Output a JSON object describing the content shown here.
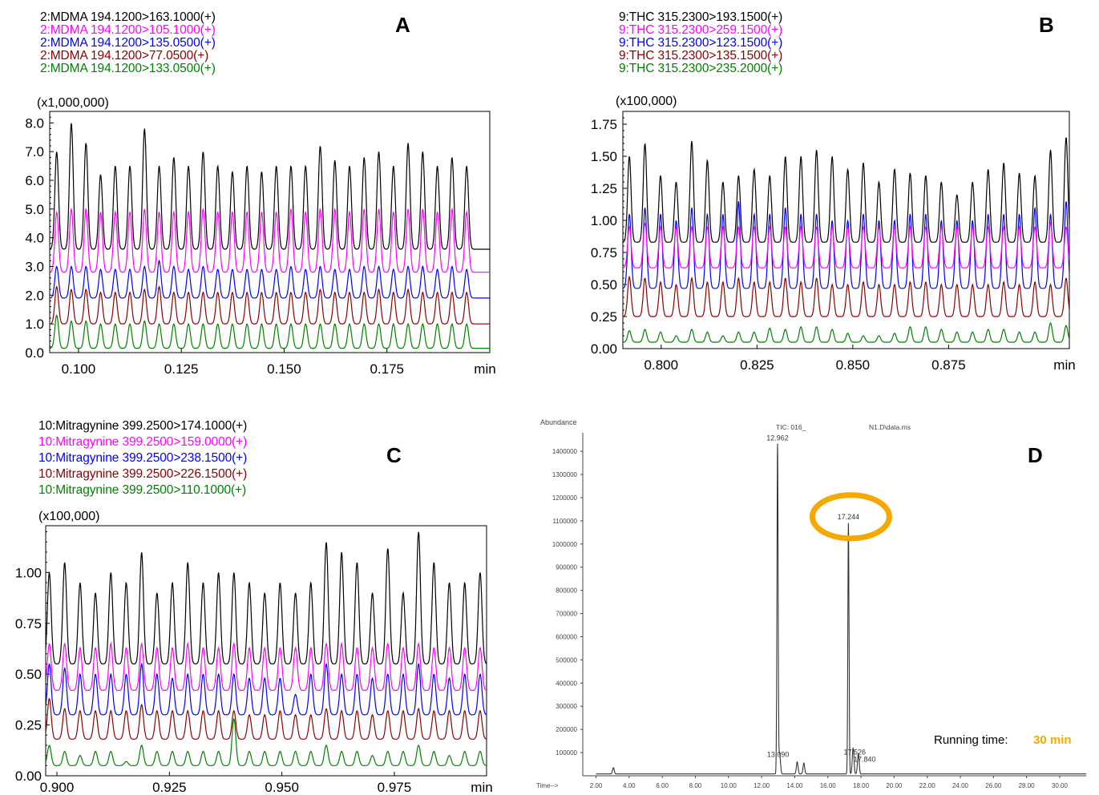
{
  "chart_data": [
    {
      "panel": "A",
      "type": "line",
      "scale_label": "(x1,000,000)",
      "xlabel": "min",
      "xticks": [
        "0.100",
        "0.125",
        "0.150",
        "0.175"
      ],
      "yticks": [
        "0.0",
        "1.0",
        "2.0",
        "3.0",
        "4.0",
        "5.0",
        "6.0",
        "7.0",
        "8.0"
      ],
      "xlim": [
        0.093,
        0.2
      ],
      "ylim": [
        0,
        8.4
      ],
      "peak_x_start": 0.0947,
      "peak_interval": 0.00356,
      "peak_width": 0.00045,
      "series": [
        {
          "name": "2:MDMA 194.1200>163.1000(+)",
          "color": "#000000",
          "baseline": 3.6,
          "peaks": [
            7.0,
            8.0,
            7.3,
            6.2,
            6.5,
            6.5,
            7.8,
            6.5,
            6.8,
            6.5,
            7.0,
            6.5,
            6.3,
            6.5,
            6.3,
            6.5,
            6.5,
            6.5,
            7.2,
            6.7,
            6.5,
            6.8,
            7.0,
            6.5,
            7.3,
            7.0,
            6.5,
            6.8,
            6.5
          ]
        },
        {
          "name": "2:MDMA 194.1200>105.1000(+)",
          "color": "#ff00ff",
          "baseline": 2.8,
          "peaks": [
            4.9,
            5.0,
            5.0,
            4.9,
            4.9,
            4.9,
            5.0,
            4.9,
            4.9,
            4.9,
            5.0,
            4.9,
            4.9,
            4.9,
            4.9,
            4.9,
            5.0,
            4.9,
            5.0,
            5.0,
            4.9,
            5.0,
            5.0,
            4.9,
            5.0,
            5.0,
            4.9,
            5.0,
            4.9
          ]
        },
        {
          "name": "2:MDMA 194.1200>135.0500(+)",
          "color": "#0000ff",
          "baseline": 1.9,
          "peaks": [
            3.0,
            3.0,
            3.0,
            2.9,
            2.9,
            2.9,
            3.0,
            3.2,
            3.0,
            2.9,
            3.0,
            2.9,
            2.9,
            2.9,
            2.9,
            2.9,
            3.0,
            2.9,
            3.0,
            2.9,
            2.9,
            3.0,
            3.0,
            2.9,
            3.0,
            3.0,
            2.9,
            3.0,
            2.9
          ]
        },
        {
          "name": "2:MDMA 194.1200>77.0500(+)",
          "color": "#8b0000",
          "baseline": 1.0,
          "peaks": [
            2.3,
            2.2,
            2.2,
            2.1,
            2.1,
            2.1,
            2.2,
            2.3,
            2.1,
            2.1,
            2.1,
            2.1,
            2.1,
            2.1,
            2.1,
            2.1,
            2.1,
            2.1,
            2.2,
            2.1,
            2.1,
            2.1,
            2.2,
            2.1,
            2.2,
            2.1,
            2.1,
            2.1,
            2.1
          ]
        },
        {
          "name": "2:MDMA 194.1200>133.0500(+)",
          "color": "#008000",
          "baseline": 0.15,
          "peaks": [
            1.3,
            1.1,
            1.1,
            1.0,
            1.0,
            1.0,
            1.1,
            1.0,
            1.0,
            1.0,
            1.0,
            1.0,
            1.0,
            1.0,
            1.0,
            1.0,
            1.0,
            1.0,
            1.0,
            1.0,
            1.0,
            1.0,
            1.0,
            1.0,
            1.0,
            1.0,
            1.0,
            1.0,
            1.0
          ]
        }
      ]
    },
    {
      "panel": "B",
      "type": "line",
      "scale_label": "(x100,000)",
      "xlabel": "min",
      "xticks": [
        "0.800",
        "0.825",
        "0.850",
        "0.875"
      ],
      "yticks": [
        "0.00",
        "0.25",
        "0.50",
        "0.75",
        "1.00",
        "1.25",
        "1.50",
        "1.75"
      ],
      "xlim": [
        0.79,
        0.9065
      ],
      "ylim": [
        0,
        1.85
      ],
      "peak_x_start": 0.7917,
      "peak_interval": 0.00407,
      "peak_width": 0.00045,
      "series": [
        {
          "name": "9:THC 315.2300>193.1500(+)",
          "color": "#000000",
          "baseline": 0.83,
          "peaks": [
            1.5,
            1.6,
            1.35,
            1.3,
            1.62,
            1.47,
            1.3,
            1.35,
            1.4,
            1.35,
            1.5,
            1.5,
            1.55,
            1.5,
            1.4,
            1.45,
            1.3,
            1.4,
            1.37,
            1.35,
            1.3,
            1.2,
            1.3,
            1.4,
            1.45,
            1.37,
            1.35,
            1.55,
            1.65
          ]
        },
        {
          "name": "9:THC 315.2300>259.1500(+)",
          "color": "#ff00ff",
          "baseline": 0.63,
          "peaks": [
            0.95,
            0.98,
            0.95,
            0.95,
            0.95,
            0.95,
            0.95,
            0.95,
            0.95,
            0.95,
            0.95,
            0.95,
            0.95,
            0.95,
            0.95,
            0.95,
            0.95,
            0.95,
            0.95,
            0.95,
            0.95,
            0.95,
            0.95,
            0.95,
            0.95,
            0.95,
            0.95,
            0.98,
            0.95
          ]
        },
        {
          "name": "9:THC 315.2300>123.1500(+)",
          "color": "#0000ff",
          "baseline": 0.47,
          "peaks": [
            1.05,
            1.1,
            1.05,
            1.0,
            1.1,
            1.05,
            1.05,
            1.15,
            1.05,
            1.05,
            1.1,
            1.05,
            1.05,
            1.0,
            1.0,
            1.05,
            1.0,
            1.0,
            1.05,
            1.05,
            1.0,
            1.0,
            1.0,
            1.05,
            1.05,
            1.05,
            1.1,
            1.05,
            1.15
          ]
        },
        {
          "name": "9:THC 315.2300>135.1500(+)",
          "color": "#8b0000",
          "baseline": 0.25,
          "peaks": [
            0.56,
            0.55,
            0.52,
            0.5,
            0.55,
            0.52,
            0.52,
            0.55,
            0.52,
            0.52,
            0.55,
            0.52,
            0.55,
            0.5,
            0.5,
            0.52,
            0.5,
            0.5,
            0.52,
            0.52,
            0.5,
            0.5,
            0.5,
            0.5,
            0.52,
            0.5,
            0.52,
            0.5,
            0.55
          ]
        },
        {
          "name": "9:THC 315.2300>235.2000(+)",
          "color": "#008000",
          "baseline": 0.05,
          "peaks": [
            0.14,
            0.15,
            0.13,
            0.1,
            0.15,
            0.13,
            0.1,
            0.13,
            0.13,
            0.16,
            0.15,
            0.17,
            0.17,
            0.15,
            0.12,
            0.1,
            0.1,
            0.12,
            0.17,
            0.17,
            0.15,
            0.13,
            0.13,
            0.15,
            0.15,
            0.13,
            0.13,
            0.2,
            0.18
          ]
        }
      ]
    },
    {
      "panel": "C",
      "type": "line",
      "scale_label": "(x100,000)",
      "xlabel": "min",
      "xticks": [
        "0.900",
        "0.925",
        "0.950",
        "0.975"
      ],
      "yticks": [
        "0.00",
        "0.25",
        "0.50",
        "0.75",
        "1.00"
      ],
      "xlim": [
        0.8975,
        0.9955
      ],
      "ylim": [
        0,
        1.23
      ],
      "peak_x_start": 0.8983,
      "peak_interval": 0.00342,
      "peak_width": 0.00042,
      "series": [
        {
          "name": "10:Mitragynine 399.2500>174.1000(+)",
          "color": "#000000",
          "baseline": 0.55,
          "peaks": [
            1.0,
            1.05,
            0.95,
            0.9,
            1.0,
            0.95,
            1.1,
            0.9,
            0.95,
            1.05,
            0.95,
            1.0,
            1.0,
            0.95,
            0.9,
            0.95,
            0.9,
            0.95,
            1.15,
            1.1,
            1.05,
            0.9,
            1.12,
            0.9,
            1.2,
            1.05,
            0.95,
            0.95,
            1.0,
            1.2
          ]
        },
        {
          "name": "10:Mitragynine 399.2500>159.0000(+)",
          "color": "#ff00ff",
          "baseline": 0.42,
          "peaks": [
            0.65,
            0.65,
            0.63,
            0.63,
            0.65,
            0.63,
            0.65,
            0.63,
            0.63,
            0.65,
            0.63,
            0.63,
            0.65,
            0.63,
            0.63,
            0.63,
            0.63,
            0.63,
            0.65,
            0.65,
            0.63,
            0.63,
            0.65,
            0.63,
            0.65,
            0.63,
            0.63,
            0.63,
            0.63,
            0.65
          ]
        },
        {
          "name": "10:Mitragynine 399.2500>238.1500(+)",
          "color": "#0000ff",
          "baseline": 0.3,
          "peaks": [
            0.55,
            0.53,
            0.5,
            0.5,
            0.5,
            0.5,
            0.55,
            0.5,
            0.48,
            0.5,
            0.5,
            0.5,
            0.5,
            0.48,
            0.48,
            0.48,
            0.4,
            0.5,
            0.55,
            0.5,
            0.5,
            0.48,
            0.5,
            0.5,
            0.55,
            0.5,
            0.48,
            0.5,
            0.5,
            0.5
          ]
        },
        {
          "name": "10:Mitragynine 399.2500>226.1500(+)",
          "color": "#8b0000",
          "baseline": 0.18,
          "peaks": [
            0.38,
            0.33,
            0.32,
            0.32,
            0.32,
            0.32,
            0.35,
            0.32,
            0.32,
            0.32,
            0.32,
            0.32,
            0.32,
            0.3,
            0.3,
            0.32,
            0.3,
            0.3,
            0.33,
            0.32,
            0.32,
            0.3,
            0.32,
            0.32,
            0.33,
            0.32,
            0.32,
            0.32,
            0.32,
            0.35
          ]
        },
        {
          "name": "10:Mitragynine 399.2500>110.1000(+)",
          "color": "#008000",
          "baseline": 0.05,
          "peaks": [
            0.15,
            0.12,
            0.1,
            0.12,
            0.12,
            0.07,
            0.15,
            0.12,
            0.12,
            0.12,
            0.12,
            0.12,
            0.28,
            0.12,
            0.12,
            0.12,
            0.12,
            0.12,
            0.15,
            0.12,
            0.12,
            0.1,
            0.12,
            0.12,
            0.15,
            0.12,
            0.1,
            0.12,
            0.12,
            0.2
          ]
        }
      ]
    },
    {
      "panel": "D",
      "type": "line",
      "ylabel": "Abundance",
      "title": "TIC: 016_",
      "file_label": "N1.D\\data.ms",
      "xlabel_prefix": "Time-->",
      "xticks": [
        "2.00",
        "4.00",
        "6.00",
        "8.00",
        "10.00",
        "12.00",
        "14.00",
        "16.00",
        "18.00",
        "20.00",
        "22.00",
        "24.00",
        "26.00",
        "28.00",
        "30.00"
      ],
      "yticks": [
        "100000",
        "200000",
        "300000",
        "400000",
        "500000",
        "600000",
        "700000",
        "800000",
        "900000",
        "1000000",
        "1100000",
        "1200000",
        "1300000",
        "1400000"
      ],
      "xlim": [
        1.2,
        31.6
      ],
      "ylim": [
        0,
        1480000
      ],
      "series": [
        {
          "name": "TIC",
          "color": "#333333",
          "baseline": 8000,
          "peaks": [
            {
              "x": 3.05,
              "y": 35000,
              "label": ""
            },
            {
              "x": 12.962,
              "y": 1430000,
              "label": "12.962"
            },
            {
              "x": 13.09,
              "y": 95000,
              "label": "13.090"
            },
            {
              "x": 14.15,
              "y": 60000,
              "label": ""
            },
            {
              "x": 14.55,
              "y": 55000,
              "label": ""
            },
            {
              "x": 17.244,
              "y": 1090000,
              "label": "17.244"
            },
            {
              "x": 17.526,
              "y": 120000,
              "label": "17.526"
            },
            {
              "x": 17.84,
              "y": 95000,
              "label": "17.840"
            }
          ]
        }
      ],
      "highlight_peak": "17.244",
      "running_time_label": "Running time:",
      "running_time_value": "30 min",
      "highlight_color": "#f5a800"
    }
  ],
  "panel_letters": [
    "A",
    "B",
    "C",
    "D"
  ]
}
